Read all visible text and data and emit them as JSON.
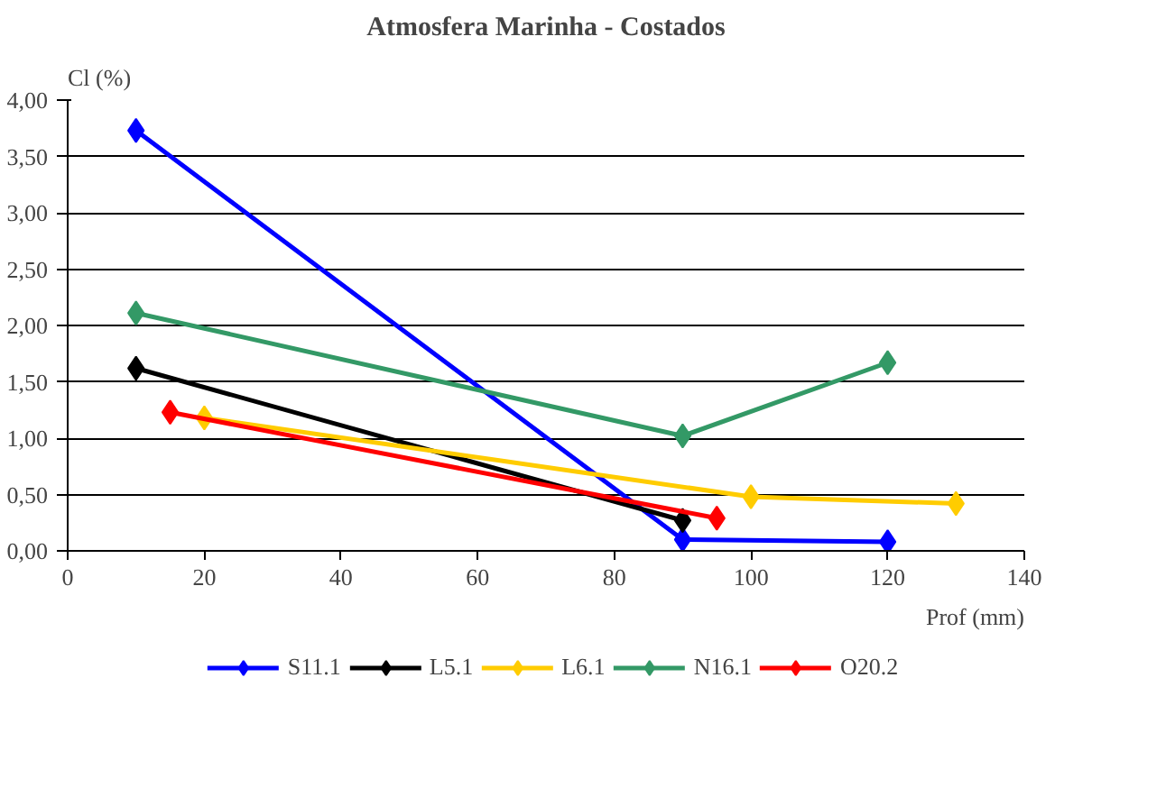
{
  "chart_data": {
    "type": "line",
    "title": "Atmosfera Marinha - Costados",
    "xlabel": "Prof (mm)",
    "ylabel": "Cl (%)",
    "series": [
      {
        "name": "S11.1",
        "color": "#0000ff",
        "x": [
          10,
          90,
          120
        ],
        "values": [
          3.73,
          0.1,
          0.08
        ]
      },
      {
        "name": "L5.1",
        "color": "#000000",
        "x": [
          10,
          90
        ],
        "values": [
          1.62,
          0.27
        ]
      },
      {
        "name": "L6.1",
        "color": "#ffcc00",
        "x": [
          20,
          100,
          130
        ],
        "values": [
          1.18,
          0.48,
          0.42
        ]
      },
      {
        "name": "N16.1",
        "color": "#339966",
        "x": [
          10,
          90,
          120
        ],
        "values": [
          2.11,
          1.02,
          1.67
        ]
      },
      {
        "name": "O20.2",
        "color": "#ff0000",
        "x": [
          15,
          95
        ],
        "values": [
          1.23,
          0.29
        ]
      }
    ],
    "marker": "diamond",
    "grid": "y",
    "legend": "bottom",
    "xlim": [
      0,
      140
    ],
    "xticks": [
      0,
      20,
      40,
      60,
      80,
      100,
      120,
      140
    ],
    "ylim": [
      0,
      4
    ],
    "yticks": [
      {
        "value": 0,
        "label": "0,00"
      },
      {
        "value": 0.5,
        "label": "0,50"
      },
      {
        "value": 1,
        "label": "1,00"
      },
      {
        "value": 1.5,
        "label": "1,50"
      },
      {
        "value": 2,
        "label": "2,00"
      },
      {
        "value": 2.5,
        "label": "2,50"
      },
      {
        "value": 3,
        "label": "3,00"
      },
      {
        "value": 3.5,
        "label": "3,50"
      },
      {
        "value": 4,
        "label": "4,00"
      }
    ]
  }
}
